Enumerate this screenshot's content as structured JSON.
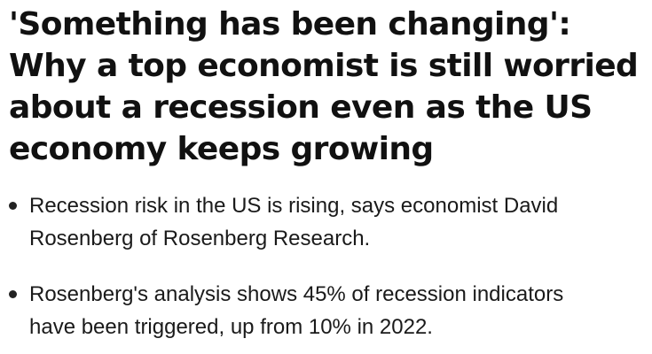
{
  "headline": {
    "lines": [
      "'Something has been changing':",
      "Why a top economist is still worried",
      "about a recession even as the US",
      "economy keeps growing"
    ]
  },
  "bullets": [
    {
      "lines": [
        "Recession risk in the US is rising, says economist David",
        "Rosenberg of Rosenberg Research."
      ]
    },
    {
      "lines": [
        "Rosenberg's analysis shows 45% of recession indicators",
        "have been triggered, up from 10% in 2022."
      ]
    }
  ]
}
